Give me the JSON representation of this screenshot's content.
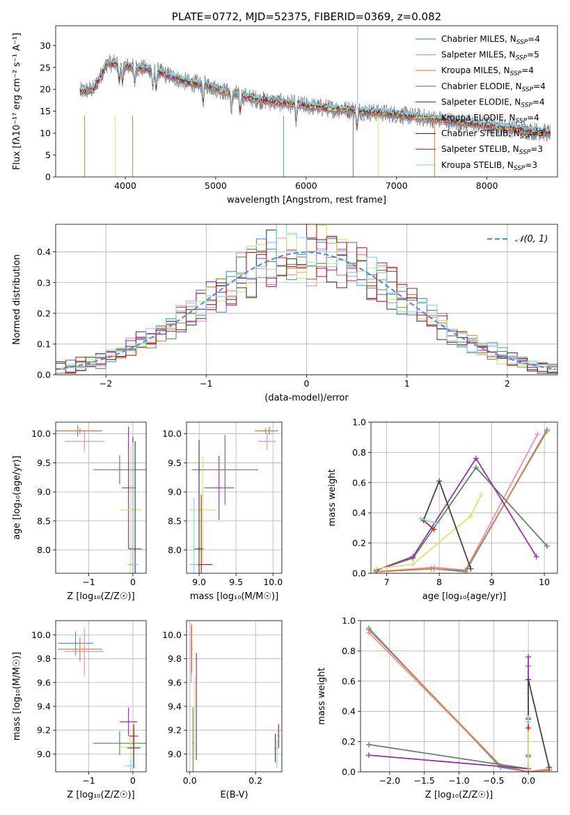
{
  "colors": {
    "chabrier_miles": "#4a90d9",
    "salpeter_miles": "#e88ec4",
    "kroupa_miles": "#d9822b",
    "chabrier_elodie": "#5a8a5a",
    "salpeter_elodie": "#9b30b0",
    "kroupa_elodie": "#d4e86a",
    "chabrier_stelib": "#444444",
    "salpeter_stelib": "#c0231d",
    "kroupa_stelib": "#7fd6e8",
    "normal_curve": "#5b8ddc"
  },
  "chart_data": [
    {
      "type": "line",
      "title": "PLATE=0772, MJD=52375, FIBERID=0369, z=0.082",
      "xlabel": "wavelength [Angstrom, rest frame]",
      "ylabel": "Flux [fλ10⁻¹⁷ erg cm⁻² s⁻¹ A⁻¹]",
      "xlim": [
        3230,
        8780
      ],
      "ylim": [
        0,
        34.5
      ],
      "xticks": [
        "4000",
        "5000",
        "6000",
        "7000",
        "8000"
      ],
      "yticks": [
        "0",
        "5",
        "10",
        "15",
        "20",
        "25",
        "30"
      ],
      "legend": "top-right",
      "legend_entries": [
        "Chabrier MILES, N_SSP=4",
        "Salpeter MILES, N_SSP=5",
        "Kroupa MILES, N_SSP=4",
        "Chabrier ELODIE, N_SSP=4",
        "Salpeter ELODIE, N_SSP=4",
        "Kroupa ELODIE, N_SSP=4",
        "Chabrier STELIB, N_SSP=3",
        "Salpeter STELIB, N_SSP=3",
        "Kroupa STELIB, N_SSP=3"
      ],
      "spectrum_continuum": {
        "x": [
          3500,
          3650,
          3800,
          3950,
          4100,
          4300,
          4500,
          4700,
          4900,
          5100,
          5300,
          5500,
          5700,
          5900,
          6100,
          6300,
          6500,
          6700,
          6900,
          7100,
          7300,
          7500,
          7700,
          7900,
          8100,
          8300,
          8500,
          8700
        ],
        "y": [
          19.5,
          20,
          26,
          25.5,
          25,
          24.5,
          23,
          21.5,
          21,
          19.5,
          18.5,
          17.5,
          17,
          16.5,
          16,
          15.5,
          15.3,
          14.8,
          14.5,
          14,
          13.5,
          13,
          12.5,
          12,
          11.5,
          11,
          10.5,
          10
        ]
      }
    },
    {
      "type": "line",
      "xlabel": "(data-model)/error",
      "ylabel": "Normed distribution",
      "xlim": [
        -2.5,
        2.5
      ],
      "ylim": [
        0,
        0.49
      ],
      "xticks": [
        "−2",
        "−1",
        "0",
        "1",
        "2"
      ],
      "yticks": [
        "0.0",
        "0.1",
        "0.2",
        "0.3",
        "0.4"
      ],
      "grid": true,
      "legend": "top-right",
      "legend_entries": [
        "𝒩(0, 1)"
      ],
      "normal_curve": {
        "mean": 0,
        "sigma": 1
      }
    },
    {
      "type": "scatter",
      "xlabel": "Z [log₁₀(Z/Z☉)]",
      "ylabel": "age  [log₁₀(age/yr)]",
      "xlim": [
        -1.75,
        0.3
      ],
      "ylim": [
        7.6,
        10.2
      ],
      "xticks": [
        "−1",
        "0"
      ],
      "yticks": [
        "8.0",
        "8.5",
        "9.0",
        "9.5",
        "10.0"
      ],
      "grid": true,
      "points": [
        {
          "x": -1.25,
          "y": 10.05,
          "xerr": 0.55,
          "yerr": 0.1,
          "c": "chabrier_miles"
        },
        {
          "x": -1.1,
          "y": 9.87,
          "xerr": 0.45,
          "yerr": 0.18,
          "c": "salpeter_miles"
        },
        {
          "x": -1.2,
          "y": 10.05,
          "xerr": 0.5,
          "yerr": 0.05,
          "c": "kroupa_miles"
        },
        {
          "x": -0.3,
          "y": 9.38,
          "xerr": 0.6,
          "yerr": 0.25,
          "c": "chabrier_elodie"
        },
        {
          "x": -0.1,
          "y": 9.07,
          "xerr": 0.15,
          "yerr": 1.05,
          "c": "salpeter_elodie"
        },
        {
          "x": -0.05,
          "y": 8.69,
          "xerr": 0.25,
          "yerr": 1.1,
          "c": "kroupa_elodie"
        },
        {
          "x": 0.05,
          "y": 8.02,
          "xerr": 0.15,
          "yerr": 1.85,
          "c": "chabrier_stelib"
        },
        {
          "x": 0.0,
          "y": 7.75,
          "xerr": 0.1,
          "yerr": 2.2,
          "c": "salpeter_stelib"
        },
        {
          "x": 0.0,
          "y": 7.75,
          "xerr": 0.12,
          "yerr": 2.1,
          "c": "kroupa_stelib"
        }
      ]
    },
    {
      "type": "scatter",
      "xlabel": "mass [log₁₀(M/M☉)]",
      "xlim": [
        8.83,
        10.12
      ],
      "ylim": [
        7.6,
        10.2
      ],
      "xticks": [
        "9.0",
        "9.5",
        "10.0"
      ],
      "yticks": [
        "8.0",
        "8.5",
        "9.0",
        "9.5",
        "10.0"
      ],
      "grid": true,
      "points": [
        {
          "x": 9.95,
          "y": 10.05,
          "xerr": 0.12,
          "yerr": 0.07,
          "c": "chabrier_miles"
        },
        {
          "x": 9.92,
          "y": 9.87,
          "xerr": 0.12,
          "yerr": 0.15,
          "c": "salpeter_miles"
        },
        {
          "x": 9.9,
          "y": 10.05,
          "xerr": 0.15,
          "yerr": 0.05,
          "c": "kroupa_miles"
        },
        {
          "x": 9.35,
          "y": 9.38,
          "xerr": 0.45,
          "yerr": 0.6,
          "c": "chabrier_elodie"
        },
        {
          "x": 9.27,
          "y": 9.07,
          "xerr": 0.2,
          "yerr": 0.55,
          "c": "salpeter_elodie"
        },
        {
          "x": 9.05,
          "y": 8.69,
          "xerr": 0.18,
          "yerr": 0.92,
          "c": "kroupa_elodie"
        },
        {
          "x": 9.0,
          "y": 8.02,
          "xerr": 0.06,
          "yerr": 1.87,
          "c": "chabrier_stelib"
        },
        {
          "x": 9.03,
          "y": 7.75,
          "xerr": 0.15,
          "yerr": 1.2,
          "c": "salpeter_stelib"
        },
        {
          "x": 8.93,
          "y": 7.75,
          "xerr": 0.05,
          "yerr": 1.15,
          "c": "kroupa_stelib"
        }
      ]
    },
    {
      "type": "line",
      "xlabel": "age  [log₁₀(age/yr)]",
      "ylabel": "mass weight",
      "xlim": [
        6.7,
        10.25
      ],
      "ylim": [
        0,
        1.0
      ],
      "xticks": [
        "7",
        "8",
        "9",
        "10"
      ],
      "yticks": [
        "0.0",
        "0.2",
        "0.4",
        "0.6",
        "0.8",
        "1.0"
      ],
      "grid": true,
      "series": [
        {
          "c": "chabrier_miles",
          "x": [
            6.8,
            7.9,
            8.5,
            10.05
          ],
          "y": [
            0.01,
            0.03,
            0.01,
            0.95
          ]
        },
        {
          "c": "salpeter_miles",
          "x": [
            6.8,
            7.9,
            8.5,
            9.87
          ],
          "y": [
            0.01,
            0.04,
            0.02,
            0.92
          ]
        },
        {
          "c": "kroupa_miles",
          "x": [
            6.8,
            7.85,
            8.5,
            10.05
          ],
          "y": [
            0.01,
            0.03,
            0.02,
            0.94
          ]
        },
        {
          "c": "chabrier_elodie",
          "x": [
            6.8,
            7.5,
            8.7,
            10.05
          ],
          "y": [
            0.02,
            0.1,
            0.7,
            0.18
          ]
        },
        {
          "c": "salpeter_elodie",
          "x": [
            6.8,
            7.5,
            8.7,
            9.85
          ],
          "y": [
            0.02,
            0.11,
            0.76,
            0.11
          ]
        },
        {
          "c": "kroupa_elodie",
          "x": [
            6.8,
            7.5,
            8.6,
            8.8
          ],
          "y": [
            0.03,
            0.06,
            0.38,
            0.52
          ]
        },
        {
          "c": "chabrier_stelib",
          "x": [
            7.7,
            8.0,
            8.6
          ],
          "y": [
            0.35,
            0.61,
            0.03
          ]
        },
        {
          "c": "salpeter_stelib",
          "x": [
            7.7,
            7.9
          ],
          "y": [
            0.35,
            0.29
          ]
        },
        {
          "c": "kroupa_stelib",
          "x": [
            7.65,
            7.95
          ],
          "y": [
            0.36,
            0.33
          ]
        }
      ]
    },
    {
      "type": "scatter",
      "xlabel": "Z [log₁₀(Z/Z☉)]",
      "ylabel": "mass [log₁₀(M/M☉)]",
      "xlim": [
        -1.75,
        0.3
      ],
      "ylim": [
        8.85,
        10.12
      ],
      "xticks": [
        "−1",
        "0"
      ],
      "yticks": [
        "9.0",
        "9.2",
        "9.4",
        "9.6",
        "9.8",
        "10.0"
      ],
      "grid": true,
      "points": [
        {
          "x": -1.3,
          "y": 9.93,
          "xerr": 0.4,
          "yerr": 0.1,
          "c": "chabrier_miles"
        },
        {
          "x": -1.1,
          "y": 9.86,
          "xerr": 0.45,
          "yerr": 0.2,
          "c": "salpeter_miles"
        },
        {
          "x": -1.2,
          "y": 9.88,
          "xerr": 0.5,
          "yerr": 0.1,
          "c": "kroupa_miles"
        },
        {
          "x": -0.3,
          "y": 9.09,
          "xerr": 0.6,
          "yerr": 0.1,
          "c": "chabrier_elodie"
        },
        {
          "x": -0.1,
          "y": 9.27,
          "xerr": 0.2,
          "yerr": 0.12,
          "c": "salpeter_elodie"
        },
        {
          "x": -0.05,
          "y": 9.06,
          "xerr": 0.25,
          "yerr": 0.15,
          "c": "kroupa_elodie"
        },
        {
          "x": 0.02,
          "y": 9.05,
          "xerr": 0.15,
          "yerr": 0.17,
          "c": "chabrier_stelib"
        },
        {
          "x": 0.02,
          "y": 9.15,
          "xerr": 0.1,
          "yerr": 0.1,
          "c": "salpeter_stelib"
        },
        {
          "x": -0.05,
          "y": 8.9,
          "xerr": 0.12,
          "yerr": 0.05,
          "c": "kroupa_stelib"
        }
      ]
    },
    {
      "type": "scatter",
      "xlabel": "E(B-V)",
      "xlim": [
        -0.01,
        0.28
      ],
      "ylim": [
        8.85,
        10.12
      ],
      "xticks": [
        "0.0",
        "0.2"
      ],
      "yticks": [
        "9.0",
        "9.2",
        "9.4",
        "9.6",
        "9.8",
        "10.0"
      ],
      "grid": true,
      "points": [
        {
          "x": 0.005,
          "y": 9.93,
          "xerr": 0.003,
          "yerr": 0.15,
          "c": "chabrier_miles"
        },
        {
          "x": 0.004,
          "y": 9.85,
          "xerr": 0.003,
          "yerr": 0.25,
          "c": "salpeter_miles"
        },
        {
          "x": 0.006,
          "y": 9.88,
          "xerr": 0.003,
          "yerr": 0.2,
          "c": "kroupa_miles"
        },
        {
          "x": 0.01,
          "y": 9.09,
          "xerr": 0.002,
          "yerr": 0.3,
          "c": "chabrier_elodie"
        },
        {
          "x": 0.02,
          "y": 9.4,
          "xerr": 0.002,
          "yerr": 0.45,
          "c": "salpeter_elodie"
        },
        {
          "x": 0.015,
          "y": 9.3,
          "xerr": 0.002,
          "yerr": 0.35,
          "c": "kroupa_elodie"
        },
        {
          "x": 0.26,
          "y": 9.05,
          "xerr": 0.002,
          "yerr": 0.12,
          "c": "chabrier_stelib"
        },
        {
          "x": 0.27,
          "y": 9.15,
          "xerr": 0.002,
          "yerr": 0.1,
          "c": "salpeter_stelib"
        },
        {
          "x": 0.265,
          "y": 9.0,
          "xerr": 0.002,
          "yerr": 0.12,
          "c": "kroupa_stelib"
        }
      ]
    },
    {
      "type": "line",
      "xlabel": "Z [log₁₀(Z/Z☉)]",
      "ylabel": "mass weight",
      "xlim": [
        -2.42,
        0.42
      ],
      "ylim": [
        0,
        1.0
      ],
      "xticks": [
        "−2.0",
        "−1.5",
        "−1.0",
        "−0.5",
        "0.0"
      ],
      "yticks": [
        "0.0",
        "0.2",
        "0.4",
        "0.6",
        "0.8",
        "1.0"
      ],
      "grid": true,
      "series": [
        {
          "c": "chabrier_miles",
          "x": [
            -2.3,
            -0.4,
            0.0,
            0.3
          ],
          "y": [
            0.95,
            0.03,
            0.0,
            0.02
          ]
        },
        {
          "c": "salpeter_miles",
          "x": [
            -2.3,
            -0.4,
            0.0,
            0.3
          ],
          "y": [
            0.92,
            0.04,
            0.0,
            0.02
          ]
        },
        {
          "c": "kroupa_miles",
          "x": [
            -2.3,
            -0.4,
            0.0,
            0.3
          ],
          "y": [
            0.94,
            0.04,
            0.0,
            0.01
          ]
        },
        {
          "c": "chabrier_elodie",
          "x": [
            -2.3,
            0.0,
            0.0,
            0.0
          ],
          "y": [
            0.18,
            0.02,
            0.1,
            0.7
          ]
        },
        {
          "c": "salpeter_elodie",
          "x": [
            -2.3,
            0.0,
            0.0,
            0.0
          ],
          "y": [
            0.11,
            0.02,
            0.11,
            0.76
          ]
        },
        {
          "c": "kroupa_elodie",
          "x": [
            0.0,
            0.0,
            0.0
          ],
          "y": [
            0.03,
            0.38,
            0.52
          ]
        },
        {
          "c": "chabrier_stelib",
          "x": [
            0.0,
            0.0,
            0.3
          ],
          "y": [
            0.35,
            0.61,
            0.03
          ]
        },
        {
          "c": "salpeter_stelib",
          "x": [
            0.0,
            0.0
          ],
          "y": [
            0.35,
            0.29
          ]
        },
        {
          "c": "kroupa_stelib",
          "x": [
            0.0,
            0.0
          ],
          "y": [
            0.36,
            0.33
          ]
        }
      ]
    }
  ]
}
